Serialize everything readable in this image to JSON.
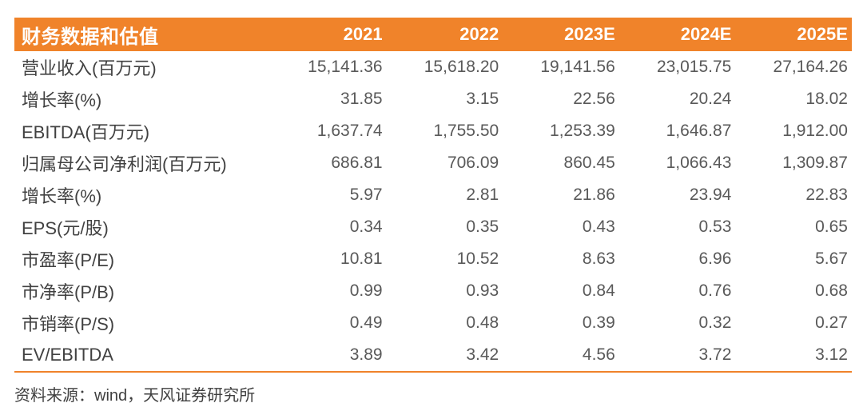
{
  "table": {
    "header": {
      "title": "财务数据和估值",
      "years": [
        "2021",
        "2022",
        "2023E",
        "2024E",
        "2025E"
      ]
    },
    "rows": [
      {
        "label": "营业收入(百万元)",
        "values": [
          "15,141.36",
          "15,618.20",
          "19,141.56",
          "23,015.75",
          "27,164.26"
        ]
      },
      {
        "label": "增长率(%)",
        "values": [
          "31.85",
          "3.15",
          "22.56",
          "20.24",
          "18.02"
        ]
      },
      {
        "label": "EBITDA(百万元)",
        "values": [
          "1,637.74",
          "1,755.50",
          "1,253.39",
          "1,646.87",
          "1,912.00"
        ]
      },
      {
        "label": "归属母公司净利润(百万元)",
        "values": [
          "686.81",
          "706.09",
          "860.45",
          "1,066.43",
          "1,309.87"
        ]
      },
      {
        "label": "增长率(%)",
        "values": [
          "5.97",
          "2.81",
          "21.86",
          "23.94",
          "22.83"
        ]
      },
      {
        "label": "EPS(元/股)",
        "values": [
          "0.34",
          "0.35",
          "0.43",
          "0.53",
          "0.65"
        ]
      },
      {
        "label": "市盈率(P/E)",
        "values": [
          "10.81",
          "10.52",
          "8.63",
          "6.96",
          "5.67"
        ]
      },
      {
        "label": "市净率(P/B)",
        "values": [
          "0.99",
          "0.93",
          "0.84",
          "0.76",
          "0.68"
        ]
      },
      {
        "label": "市销率(P/S)",
        "values": [
          "0.49",
          "0.48",
          "0.39",
          "0.32",
          "0.27"
        ]
      },
      {
        "label": "EV/EBITDA",
        "values": [
          "3.89",
          "3.42",
          "4.56",
          "3.72",
          "3.12"
        ]
      }
    ],
    "footer": {
      "source": "资料来源：wind，天风证券研究所"
    },
    "colors": {
      "header_bg": "#F0832A",
      "header_text": "#FFFFFF",
      "label_text": "#414141",
      "value_text": "#595959",
      "rule": "#F0832A"
    }
  },
  "chart_data": {
    "type": "table",
    "title": "财务数据和估值",
    "columns": [
      "2021",
      "2022",
      "2023E",
      "2024E",
      "2025E"
    ],
    "series": [
      {
        "name": "营业收入(百万元)",
        "values": [
          15141.36,
          15618.2,
          19141.56,
          23015.75,
          27164.26
        ]
      },
      {
        "name": "增长率(%)",
        "values": [
          31.85,
          3.15,
          22.56,
          20.24,
          18.02
        ]
      },
      {
        "name": "EBITDA(百万元)",
        "values": [
          1637.74,
          1755.5,
          1253.39,
          1646.87,
          1912.0
        ]
      },
      {
        "name": "归属母公司净利润(百万元)",
        "values": [
          686.81,
          706.09,
          860.45,
          1066.43,
          1309.87
        ]
      },
      {
        "name": "增长率(%)",
        "values": [
          5.97,
          2.81,
          21.86,
          23.94,
          22.83
        ]
      },
      {
        "name": "EPS(元/股)",
        "values": [
          0.34,
          0.35,
          0.43,
          0.53,
          0.65
        ]
      },
      {
        "name": "市盈率(P/E)",
        "values": [
          10.81,
          10.52,
          8.63,
          6.96,
          5.67
        ]
      },
      {
        "name": "市净率(P/B)",
        "values": [
          0.99,
          0.93,
          0.84,
          0.76,
          0.68
        ]
      },
      {
        "name": "市销率(P/S)",
        "values": [
          0.49,
          0.48,
          0.39,
          0.32,
          0.27
        ]
      },
      {
        "name": "EV/EBITDA",
        "values": [
          3.89,
          3.42,
          4.56,
          3.72,
          3.12
        ]
      }
    ]
  }
}
